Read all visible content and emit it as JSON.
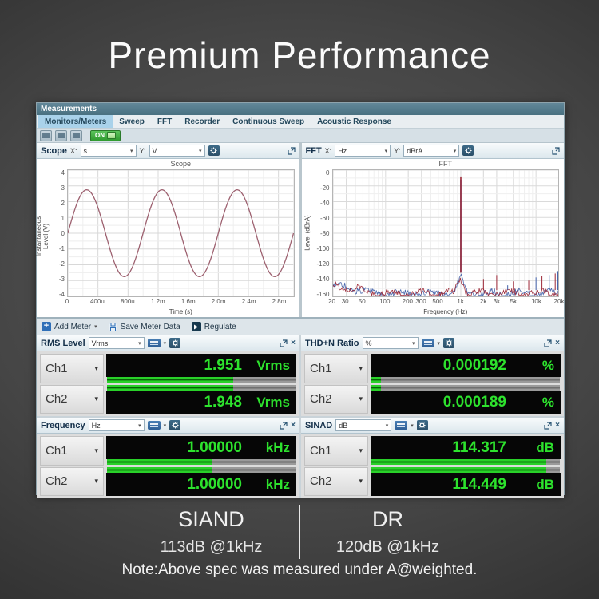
{
  "page": {
    "title": "Premium Performance",
    "note": "Note:Above spec was measured under A@weighted.",
    "specs": [
      {
        "name": "SIAND",
        "value": "113dB @1kHz"
      },
      {
        "name": "DR",
        "value": "120dB @1kHz"
      }
    ]
  },
  "window": {
    "title": "Measurements",
    "tabs": [
      {
        "label": "Monitors/Meters",
        "selected": true
      },
      {
        "label": "Sweep",
        "selected": false
      },
      {
        "label": "FFT",
        "selected": false
      },
      {
        "label": "Recorder",
        "selected": false
      },
      {
        "label": "Continuous Sweep",
        "selected": false
      },
      {
        "label": "Acoustic Response",
        "selected": false
      }
    ],
    "toolbar": {
      "on_label": "ON"
    },
    "meter_toolbar": {
      "add_meter": "Add Meter",
      "save_meter_data": "Save Meter Data",
      "regulate": "Regulate"
    }
  },
  "scope_panel": {
    "title": "Scope",
    "x_label": "X:",
    "x_unit": "s",
    "y_label": "Y:",
    "y_unit": "V"
  },
  "fft_panel": {
    "title": "FFT",
    "x_label": "X:",
    "x_unit": "Hz",
    "y_label": "Y:",
    "y_unit": "dBrA"
  },
  "chart_data": [
    {
      "type": "line",
      "title": "Scope",
      "xlabel": "Time (s)",
      "ylabel": "Instantaneous Level (V)",
      "xlim_ms": [
        0,
        3
      ],
      "ylim": [
        -4,
        4
      ],
      "grid": true,
      "y_ticks": [
        "4",
        "3",
        "2",
        "1",
        "0",
        "-1",
        "-2",
        "-3",
        "-4"
      ],
      "x_ticks": [
        {
          "label": "0",
          "ms": 0
        },
        {
          "label": "400u",
          "ms": 0.4
        },
        {
          "label": "800u",
          "ms": 0.8
        },
        {
          "label": "1.2m",
          "ms": 1.2
        },
        {
          "label": "1.6m",
          "ms": 1.6
        },
        {
          "label": "2.0m",
          "ms": 2.0
        },
        {
          "label": "2.4m",
          "ms": 2.4
        },
        {
          "label": "2.8m",
          "ms": 2.8
        }
      ],
      "waveform": {
        "shape": "sine",
        "amplitude_v": 2.75,
        "frequency_hz": 1000,
        "start_phase_deg": 0
      },
      "color": "#9c5f6e"
    },
    {
      "type": "line",
      "title": "FFT",
      "xlabel": "Frequency (Hz)",
      "ylabel": "Level (dBrA)",
      "xlog": true,
      "xlim_hz": [
        20,
        20000
      ],
      "ylim": [
        -160,
        0
      ],
      "grid": true,
      "y_ticks": [
        "0",
        "-20",
        "-40",
        "-60",
        "-80",
        "-100",
        "-120",
        "-140",
        "-160"
      ],
      "x_ticks": [
        {
          "label": "20",
          "hz": 20
        },
        {
          "label": "30",
          "hz": 30
        },
        {
          "label": "50",
          "hz": 50
        },
        {
          "label": "100",
          "hz": 100
        },
        {
          "label": "200",
          "hz": 200
        },
        {
          "label": "300",
          "hz": 300
        },
        {
          "label": "500",
          "hz": 500
        },
        {
          "label": "1k",
          "hz": 1000
        },
        {
          "label": "2k",
          "hz": 2000
        },
        {
          "label": "3k",
          "hz": 3000
        },
        {
          "label": "5k",
          "hz": 5000
        },
        {
          "label": "10k",
          "hz": 10000
        },
        {
          "label": "20k",
          "hz": 20000
        }
      ],
      "noise_floor_db": -152,
      "series": [
        {
          "name": "Ch2",
          "color": "#3f5fa8",
          "fundamental": {
            "hz": 1000,
            "db": -12
          }
        },
        {
          "name": "Ch1",
          "color": "#9b2433",
          "fundamental": {
            "hz": 1000,
            "db": -8
          }
        }
      ],
      "spikes": [
        {
          "hz": 2000,
          "db": -138,
          "series": 1
        },
        {
          "hz": 3000,
          "db": -133,
          "series": 1
        },
        {
          "hz": 4200,
          "db": -146,
          "series": 0
        },
        {
          "hz": 5000,
          "db": -141,
          "series": 1
        },
        {
          "hz": 6500,
          "db": -143,
          "series": 0
        },
        {
          "hz": 8000,
          "db": -140,
          "series": 1
        },
        {
          "hz": 10000,
          "db": -136,
          "series": 0
        },
        {
          "hz": 12000,
          "db": -134,
          "series": 1
        },
        {
          "hz": 15000,
          "db": -133,
          "series": 0
        },
        {
          "hz": 18000,
          "db": -131,
          "series": 1
        },
        {
          "hz": 19500,
          "db": -128,
          "series": 0
        }
      ]
    }
  ],
  "meters": {
    "rms": {
      "title": "RMS Level",
      "unit_selector": "Vrms",
      "channels": [
        {
          "label": "Ch1",
          "value": "1.951",
          "unit": "Vrms",
          "bar_pct": 67
        },
        {
          "label": "Ch2",
          "value": "1.948",
          "unit": "Vrms",
          "bar_pct": 67
        }
      ]
    },
    "thdn": {
      "title": "THD+N Ratio",
      "unit_selector": "%",
      "channels": [
        {
          "label": "Ch1",
          "value": "0.000192",
          "unit": "%",
          "bar_pct": 5
        },
        {
          "label": "Ch2",
          "value": "0.000189",
          "unit": "%",
          "bar_pct": 5
        }
      ]
    },
    "freq": {
      "title": "Frequency",
      "unit_selector": "Hz",
      "channels": [
        {
          "label": "Ch1",
          "value": "1.00000",
          "unit": "kHz",
          "bar_pct": 56
        },
        {
          "label": "Ch2",
          "value": "1.00000",
          "unit": "kHz",
          "bar_pct": 56
        }
      ]
    },
    "sinad": {
      "title": "SINAD",
      "unit_selector": "dB",
      "channels": [
        {
          "label": "Ch1",
          "value": "114.317",
          "unit": "dB",
          "bar_pct": 93
        },
        {
          "label": "Ch2",
          "value": "114.449",
          "unit": "dB",
          "bar_pct": 93
        }
      ]
    }
  }
}
